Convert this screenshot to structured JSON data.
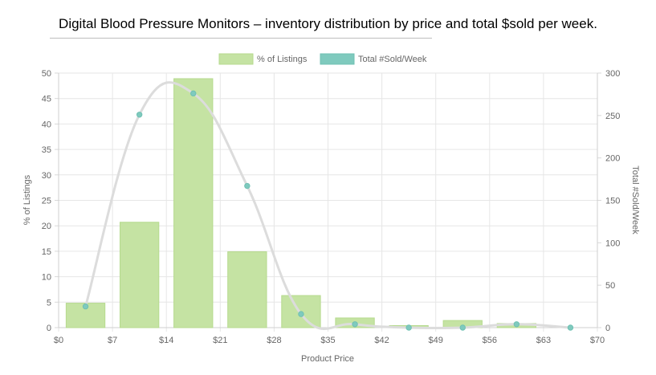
{
  "title": "Digital Blood Pressure Monitors – inventory distribution by price and total $sold per week.",
  "chart_data": {
    "type": "bar+line",
    "x_ticks": [
      "$0",
      "$7",
      "$14",
      "$21",
      "$28",
      "$35",
      "$42",
      "$49",
      "$56",
      "$63",
      "$70"
    ],
    "xlabel": "Product Price",
    "ylabel_left": "% of Listings",
    "ylabel_right": "Total #Sold/Week",
    "ylim_left": [
      0,
      50
    ],
    "ylim_right": [
      0,
      300
    ],
    "yticks_left": [
      0,
      5,
      10,
      15,
      20,
      25,
      30,
      35,
      40,
      45,
      50
    ],
    "yticks_right": [
      0,
      50,
      100,
      150,
      200,
      250,
      300
    ],
    "xlim": [
      0,
      70
    ],
    "bin_width": 7,
    "bar_centers": [
      3.5,
      10.5,
      17.5,
      24.5,
      31.5,
      38.5,
      45.5,
      52.5,
      59.5
    ],
    "series": [
      {
        "name": "% of Listings",
        "type": "bar",
        "axis": "left",
        "color": "#c5e3a3",
        "border_color": "#b6da8e",
        "values": [
          4.8,
          20.7,
          48.9,
          14.9,
          6.3,
          1.9,
          0.4,
          1.4,
          0.8
        ]
      },
      {
        "name": "Total #Sold/Week",
        "type": "line",
        "axis": "right",
        "color": "#7fcabe",
        "line_color": "#dcdcdc",
        "x": [
          3.5,
          10.5,
          17.5,
          24.5,
          31.5,
          38.5,
          45.5,
          52.5,
          59.5,
          66.5
        ],
        "values": [
          25,
          251,
          276,
          167,
          16,
          4,
          0,
          0,
          4,
          0
        ]
      }
    ],
    "legend": [
      "% of Listings",
      "Total #Sold/Week"
    ],
    "legend_position": "top",
    "grid": true
  }
}
